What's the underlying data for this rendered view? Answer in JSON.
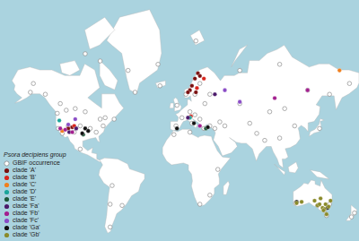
{
  "chart_data": {
    "type": "scatter",
    "legend_title": "Psora decipiens group",
    "legend": "bottom-left",
    "xlim": [
      -180,
      180
    ],
    "ylim": [
      -58,
      84
    ],
    "series": [
      {
        "name": "GBIF occurrence",
        "color": "#8c8c8c",
        "marker": "hollow",
        "x": [
          -150,
          -147,
          -135,
          -120,
          -114,
          -105,
          -95,
          -80,
          -75,
          -66,
          -123,
          -122,
          -118,
          -112,
          -106,
          -100,
          -90,
          -84,
          -77,
          -52,
          -45,
          -22,
          -95,
          -80,
          -20,
          -100,
          -70,
          -68,
          -70,
          -58,
          -4,
          2,
          10,
          15,
          20,
          25,
          30,
          6,
          15,
          20,
          -3,
          12,
          24,
          30,
          35,
          40,
          -6,
          10,
          30,
          20,
          38,
          45,
          60,
          70,
          77,
          85,
          90,
          100,
          105,
          115,
          128,
          140,
          150,
          170,
          60,
          100,
          16,
          145,
          138,
          150,
          116,
          147,
          172,
          175
        ],
        "y": [
          61,
          65,
          60,
          55,
          51,
          52,
          50,
          45,
          46,
          45,
          49,
          38,
          34,
          40,
          35,
          40,
          38,
          35,
          40,
          70,
          61,
          72,
          75,
          73,
          64,
          20,
          -33,
          -16,
          -50,
          -34,
          40,
          46,
          50,
          48,
          45,
          55,
          60,
          60,
          60,
          65,
          54,
          42,
          38,
          40,
          38,
          43,
          33,
          35,
          -25,
          -33,
          0,
          40,
          55,
          42,
          34,
          28,
          50,
          30,
          52,
          40,
          62,
          38,
          60,
          65,
          70,
          72,
          78,
          -38,
          -34,
          -33,
          -32,
          -42,
          -43,
          -40
        ]
      },
      {
        "name": "clade 'A'",
        "color": "#7a1010",
        "marker": "circle",
        "x": [
          10,
          15,
          18,
          12,
          20,
          16,
          8,
          -112,
          -108
        ],
        "y": [
          62,
          67,
          69,
          64,
          68,
          61,
          61,
          38,
          39
        ]
      },
      {
        "name": "clade 'B'",
        "color": "#d7261e",
        "marker": "circle",
        "x": [
          17,
          24,
          -106,
          11
        ],
        "y": [
          63,
          67,
          40,
          47
        ]
      },
      {
        "name": "clade 'C'",
        "color": "#f07f1e",
        "marker": "circle",
        "x": [
          160,
          -118
        ],
        "y": [
          70,
          36
        ]
      },
      {
        "name": "clade 'D'",
        "color": "#1aa59a",
        "marker": "circle",
        "x": [
          -121,
          10
        ],
        "y": [
          44,
          46
        ]
      },
      {
        "name": "clade 'E'",
        "color": "#1e5a3a",
        "marker": "circle",
        "x": [
          -97,
          26
        ],
        "y": [
          33,
          38
        ]
      },
      {
        "name": "clade 'Fa'",
        "color": "#4b1a6b",
        "marker": "circle",
        "x": [
          -111,
          -104,
          35,
          8
        ],
        "y": [
          35,
          38,
          60,
          46
        ]
      },
      {
        "name": "clade 'Fb'",
        "color": "#a3208f",
        "marker": "circle",
        "x": [
          -115,
          -108,
          -120,
          20,
          95,
          128
        ],
        "y": [
          37,
          35,
          38,
          40,
          58,
          62
        ]
      },
      {
        "name": "clade 'Fc'",
        "color": "#8a4cc6",
        "marker": "circle",
        "x": [
          -112,
          -105,
          60,
          45
        ],
        "y": [
          41,
          45,
          56,
          62
        ]
      },
      {
        "name": "clade 'Ga'",
        "color": "#111111",
        "marker": "circle",
        "x": [
          -95,
          -92,
          -98,
          -3,
          14,
          28,
          117,
          148
        ],
        "y": [
          38,
          36,
          34,
          38,
          42,
          39,
          -31,
          -36
        ]
      },
      {
        "name": "clade 'Gb'",
        "color": "#8a8a2a",
        "marker": "circle",
        "x": [
          138,
          140,
          143,
          145,
          146,
          149,
          151,
          135,
          122,
          117,
          141,
          147,
          144
        ],
        "y": [
          -34,
          -33,
          -36,
          -37,
          -33,
          -35,
          -30,
          -30,
          -31,
          -32,
          -28,
          -41,
          -38
        ]
      }
    ]
  }
}
